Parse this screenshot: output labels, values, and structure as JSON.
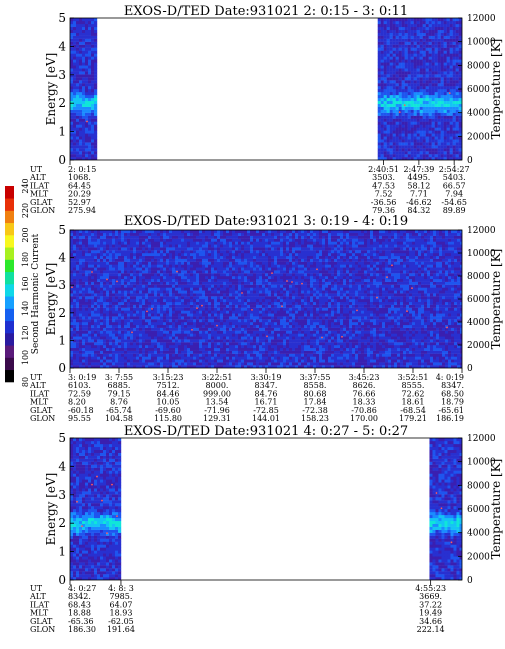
{
  "colorbar": {
    "label": "Second Harmonic Current",
    "ticks": [
      "80",
      "100",
      "120",
      "140",
      "160",
      "180",
      "200",
      "220",
      "240"
    ]
  },
  "colors": {
    "colormap": [
      "#000000",
      "#3a0a4a",
      "#5a1a7a",
      "#2a1aa0",
      "#1e2fd0",
      "#1560f0",
      "#16a0ff",
      "#10d8e8",
      "#10e0a0",
      "#2ce82c",
      "#a8f020",
      "#f8f820",
      "#f8c818",
      "#f08010",
      "#e83008",
      "#c80000"
    ],
    "temp_dots": "#ff5a5a"
  },
  "chart_data": [
    {
      "type": "heatmap",
      "title": "EXOS-D/TED   Date:931021  2: 0:15 - 3: 0:11",
      "ylabel": "Energy [eV]",
      "y2label": "Temperature [K]",
      "ylim": [
        0,
        5
      ],
      "y2lim": [
        0,
        12000
      ],
      "yticks": [
        "0",
        "1",
        "2",
        "3",
        "4",
        "5"
      ],
      "y2ticks": [
        "0",
        "2000",
        "4000",
        "6000",
        "8000",
        "10000",
        "12000"
      ],
      "data_segments": [
        [
          0,
          0.067
        ],
        [
          0.785,
          1.0
        ]
      ],
      "row_labels": [
        "UT",
        "ALT",
        "ILAT",
        "MLT",
        "GLAT",
        "GLON"
      ],
      "columns": [
        {
          "x": 0.0,
          "values": [
            "2: 0:15",
            "1068.",
            "64.45",
            "20.29",
            "52.97",
            "275.94"
          ]
        },
        {
          "x": 0.8,
          "values": [
            "2:40:51",
            "3503.",
            "47.53",
            "7.52",
            "-36.56",
            "79.36"
          ]
        },
        {
          "x": 0.89,
          "values": [
            "2:47:39",
            "4495.",
            "58.12",
            "7.71",
            "-46.62",
            "84.32"
          ]
        },
        {
          "x": 0.98,
          "values": [
            "2:54:27",
            "5403.",
            "66.57",
            "7.94",
            "-54.65",
            "89.89"
          ]
        }
      ]
    },
    {
      "type": "heatmap",
      "title": "EXOS-D/TED   Date:931021  3: 0:19 - 4: 0:19",
      "ylabel": "Energy [eV]",
      "y2label": "Temperature [K]",
      "ylim": [
        0,
        5
      ],
      "y2lim": [
        0,
        12000
      ],
      "yticks": [
        "0",
        "1",
        "2",
        "3",
        "4",
        "5"
      ],
      "y2ticks": [
        "0",
        "2000",
        "4000",
        "6000",
        "8000",
        "10000",
        "12000"
      ],
      "data_segments": [
        [
          0,
          1.0
        ]
      ],
      "row_labels": [
        "UT",
        "ALT",
        "ILAT",
        "MLT",
        "GLAT",
        "GLON"
      ],
      "columns": [
        {
          "x": 0.0,
          "values": [
            "3: 0:19",
            "6103.",
            "72.59",
            "8.20",
            "-60.18",
            "95.55"
          ]
        },
        {
          "x": 0.125,
          "values": [
            "3: 7:55",
            "6885.",
            "79.15",
            "8.76",
            "-65.74",
            "104.58"
          ]
        },
        {
          "x": 0.25,
          "values": [
            "3:15:23",
            "7512.",
            "84.46",
            "10.05",
            "-69.60",
            "115.80"
          ]
        },
        {
          "x": 0.375,
          "values": [
            "3:22:51",
            "8000.",
            "999.00",
            "13.54",
            "-71.96",
            "129.31"
          ]
        },
        {
          "x": 0.5,
          "values": [
            "3:30:19",
            "8347.",
            "84.76",
            "16.71",
            "-72.85",
            "144.01"
          ]
        },
        {
          "x": 0.625,
          "values": [
            "3:37:55",
            "8558.",
            "80.68",
            "17.84",
            "-72.38",
            "158.23"
          ]
        },
        {
          "x": 0.75,
          "values": [
            "3:45:23",
            "8626.",
            "76.66",
            "18.33",
            "-70.86",
            "170.00"
          ]
        },
        {
          "x": 0.875,
          "values": [
            "3:52:51",
            "8555.",
            "72.62",
            "18.61",
            "-68.54",
            "179.21"
          ]
        },
        {
          "x": 1.0,
          "values": [
            "4: 0:19",
            "8347.",
            "68.50",
            "18.79",
            "-65.61",
            "186.19"
          ]
        }
      ]
    },
    {
      "type": "heatmap",
      "title": "EXOS-D/TED   Date:931021  4: 0:27 - 5: 0:27",
      "ylabel": "Energy [eV]",
      "y2label": "Temperature [K]",
      "ylim": [
        0,
        5
      ],
      "y2lim": [
        0,
        12000
      ],
      "yticks": [
        "0",
        "1",
        "2",
        "3",
        "4",
        "5"
      ],
      "y2ticks": [
        "0",
        "2000",
        "4000",
        "6000",
        "8000",
        "10000",
        "12000"
      ],
      "data_segments": [
        [
          0,
          0.13
        ],
        [
          0.917,
          1.0
        ]
      ],
      "row_labels": [
        "UT",
        "ALT",
        "ILAT",
        "MLT",
        "GLAT",
        "GLON"
      ],
      "columns": [
        {
          "x": 0.0,
          "values": [
            "4: 0:27",
            "8342.",
            "68.43",
            "18.88",
            "-65.36",
            "186.30"
          ]
        },
        {
          "x": 0.13,
          "values": [
            "4: 8: 3",
            "7985.",
            "64.07",
            "18.93",
            "-62.05",
            "191.64"
          ]
        },
        {
          "x": 0.92,
          "values": [
            "4:55:23",
            "3669.",
            "37.22",
            "19.49",
            "34.66",
            "222.14"
          ]
        }
      ]
    }
  ]
}
